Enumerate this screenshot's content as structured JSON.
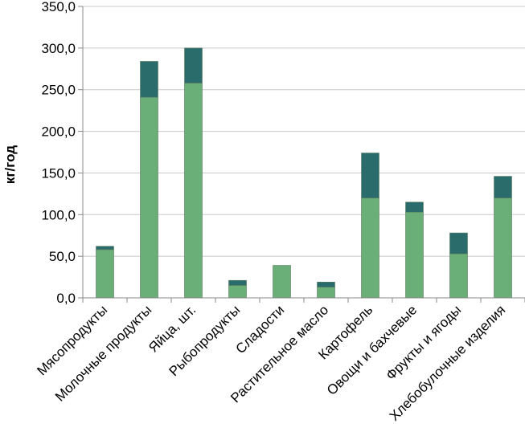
{
  "chart_data": {
    "type": "bar",
    "stacked": true,
    "title": "",
    "xlabel": "",
    "ylabel": "кг/год",
    "ylim": [
      0,
      350
    ],
    "y_ticks": [
      "0,0",
      "50,0",
      "100,0",
      "150,0",
      "200,0",
      "250,0",
      "300,0",
      "350,0"
    ],
    "y_tick_values": [
      0,
      50,
      100,
      150,
      200,
      250,
      300,
      350
    ],
    "grid": true,
    "legend": "none",
    "categories": [
      "Мясопродукты",
      "Молочные продукты",
      "Яйца, шт.",
      "Рыбопродукты",
      "Сладости",
      "Растительное масло",
      "Картофель",
      "Овощи и бахчевые",
      "Фрукты и ягоды",
      "Хлебобулочные изделия"
    ],
    "series": [
      {
        "color": "#6aae78",
        "values": [
          58,
          241,
          258,
          15,
          39,
          13,
          120,
          103,
          53,
          120
        ]
      },
      {
        "color": "#2a6b6b",
        "values": [
          4,
          43,
          42,
          6,
          0,
          6,
          54,
          12,
          25,
          26
        ]
      }
    ]
  }
}
